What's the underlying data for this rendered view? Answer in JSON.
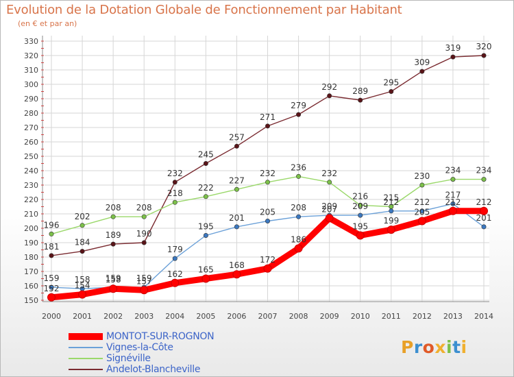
{
  "header": {
    "title": "Evolution de la Dotation Globale de Fonctionnement par Habitant",
    "subtitle": "(en € et par an)"
  },
  "brand": {
    "name": "Proxiti",
    "letters": [
      "P",
      "r",
      "o",
      "x",
      "i",
      "t",
      "i"
    ],
    "colors": [
      "#e8a028",
      "#3c8fd0",
      "#e05a28",
      "#f0b030",
      "#7cc04a",
      "#3c8fd0",
      "#f0b030"
    ]
  },
  "chart_data": {
    "type": "line",
    "title": "Evolution de la Dotation Globale de Fonctionnement par Habitant",
    "subtitle": "(en € et par an)",
    "xlabel": "",
    "ylabel": "",
    "grid": true,
    "ylim": [
      150,
      330
    ],
    "yticks": [
      150,
      160,
      170,
      180,
      190,
      200,
      210,
      220,
      230,
      240,
      250,
      260,
      270,
      280,
      290,
      300,
      310,
      320,
      330
    ],
    "categories": [
      "2000",
      "2001",
      "2002",
      "2003",
      "2004",
      "2005",
      "2006",
      "2007",
      "2008",
      "2009",
      "2010",
      "2011",
      "2012",
      "2013",
      "2014"
    ],
    "series": [
      {
        "name": "Andelot-Blancheville",
        "color": "#7a2a30",
        "marker": "#5a1418",
        "width": "thin",
        "values": [
          181,
          184,
          189,
          190,
          232,
          245,
          257,
          271,
          279,
          292,
          289,
          295,
          309,
          319,
          320
        ]
      },
      {
        "name": "Signéville",
        "color": "#9ad86a",
        "marker": "#7cc04a",
        "width": "thin",
        "values": [
          196,
          202,
          208,
          208,
          218,
          222,
          227,
          232,
          236,
          232,
          216,
          215,
          230,
          234,
          234
        ]
      },
      {
        "name": "Vignes-la-Côte",
        "color": "#6aa0d8",
        "marker": "#3c78c0",
        "width": "thin",
        "values": [
          159,
          158,
          159,
          159,
          179,
          195,
          201,
          205,
          208,
          209,
          209,
          212,
          212,
          217,
          201
        ]
      },
      {
        "name": "MONTOT-SUR-ROGNON",
        "color": "#ff0000",
        "marker": "#ff0000",
        "width": "thick",
        "values": [
          152,
          154,
          158,
          157,
          162,
          165,
          168,
          172,
          186,
          207,
          195,
          199,
          205,
          212,
          212
        ]
      }
    ]
  },
  "legend": [
    {
      "label": "MONTOT-SUR-ROGNON",
      "color": "#ff0000",
      "width": "thick"
    },
    {
      "label": "Vignes-la-Côte",
      "color": "#6aa0d8",
      "width": "thin"
    },
    {
      "label": "Signéville",
      "color": "#9ad86a",
      "width": "thin"
    },
    {
      "label": "Andelot-Blancheville",
      "color": "#7a2a30",
      "width": "thin"
    }
  ]
}
